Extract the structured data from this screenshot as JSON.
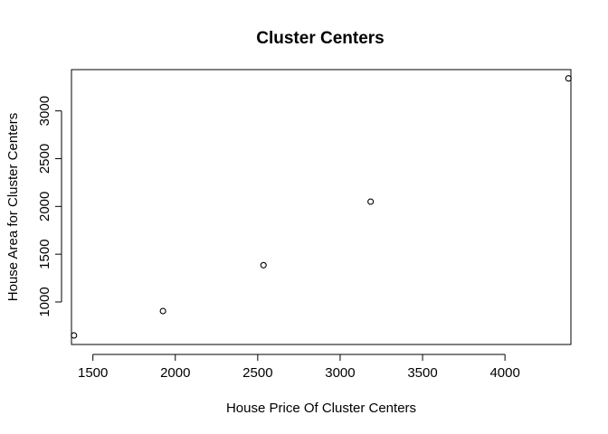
{
  "chart_data": {
    "type": "scatter",
    "title": "Cluster Centers",
    "xlabel": "House Price Of Cluster Centers",
    "ylabel": "House Area for Cluster Centers",
    "x": [
      1385,
      1925,
      2535,
      3185,
      4385
    ],
    "y": [
      650,
      905,
      1385,
      2050,
      3340
    ],
    "xlim": [
      1370,
      4400
    ],
    "ylim": [
      555,
      3432
    ],
    "x_ticks": [
      1500,
      2000,
      2500,
      3000,
      3500,
      4000
    ],
    "y_ticks": [
      1000,
      1500,
      2000,
      2500,
      3000
    ],
    "grid": false,
    "legend": "none",
    "point_style": "open-circle",
    "colors": {
      "points": "#000000",
      "axes": "#000000",
      "background": "#ffffff"
    }
  }
}
